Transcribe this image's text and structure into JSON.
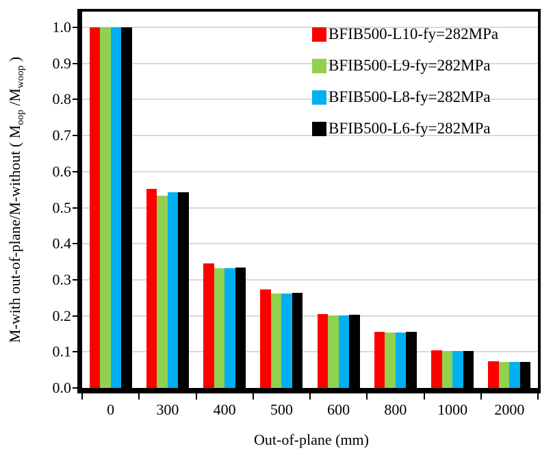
{
  "chart_data": {
    "type": "bar",
    "title": "",
    "xlabel": "Out-of-plane (mm)",
    "ylabel": {
      "full": "M-with out-of-plane/M-without ( Moop /Mwoop )",
      "p1": "M-with out-of-plane/M-without ( M",
      "sub1": "oop",
      "p2": " /M",
      "sub2": "woop",
      "p3": " )"
    },
    "categories": [
      "0",
      "300",
      "400",
      "500",
      "600",
      "800",
      "1000",
      "2000"
    ],
    "series": [
      {
        "name": "BFIB500-L10-fy=282MPa",
        "color": "#FF0000",
        "values": [
          1.0,
          0.553,
          0.345,
          0.273,
          0.205,
          0.156,
          0.104,
          0.074
        ]
      },
      {
        "name": "BFIB500-L9-fy=282MPa",
        "color": "#92D050",
        "values": [
          1.0,
          0.534,
          0.332,
          0.262,
          0.201,
          0.154,
          0.103,
          0.072
        ]
      },
      {
        "name": "BFIB500-L8-fy=282MPa",
        "color": "#00B0F0",
        "values": [
          1.0,
          0.542,
          0.332,
          0.262,
          0.201,
          0.154,
          0.103,
          0.072
        ]
      },
      {
        "name": "BFIB500-L6-fy=282MPa",
        "color": "#000000",
        "values": [
          1.0,
          0.542,
          0.334,
          0.263,
          0.203,
          0.155,
          0.103,
          0.073
        ]
      }
    ],
    "ylim": [
      0,
      1.04
    ],
    "ytick_step": 0.1,
    "ytick_labels": [
      "0.0",
      "0.1",
      "0.2",
      "0.3",
      "0.4",
      "0.5",
      "0.6",
      "0.7",
      "0.8",
      "0.9",
      "1.0"
    ],
    "grid": "horizontal",
    "legend_position": "top-right-inside",
    "colors": {
      "gridline": "#D9D9D9",
      "axis": "#000000",
      "background": "#FFFFFF"
    }
  }
}
